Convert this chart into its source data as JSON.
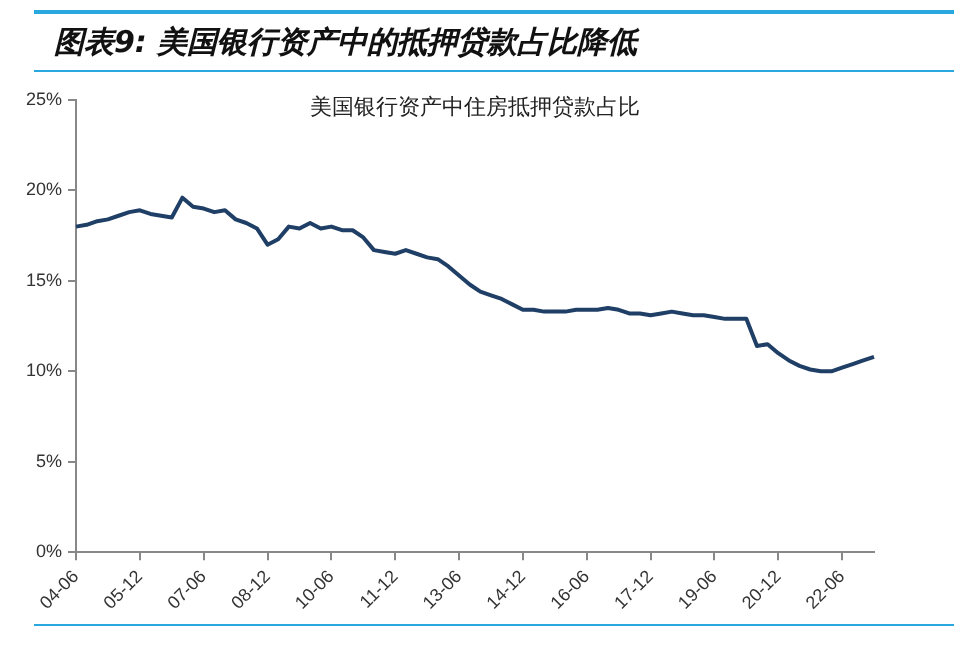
{
  "chart_data": {
    "type": "line",
    "title": "图表9: 美国银行资产中的抵押贷款占比降低",
    "subtitle": "美国银行资产中住房抵押贷款占比",
    "categories": [
      "04-06",
      null,
      null,
      null,
      null,
      null,
      "05-12",
      null,
      null,
      null,
      null,
      null,
      "07-06",
      null,
      null,
      null,
      null,
      null,
      "08-12",
      null,
      null,
      null,
      null,
      null,
      "10-06",
      null,
      null,
      null,
      null,
      null,
      "11-12",
      null,
      null,
      null,
      null,
      null,
      "13-06",
      null,
      null,
      null,
      null,
      null,
      "14-12",
      null,
      null,
      null,
      null,
      null,
      "16-06",
      null,
      null,
      null,
      null,
      null,
      "17-12",
      null,
      null,
      null,
      null,
      null,
      "19-06",
      null,
      null,
      null,
      null,
      null,
      "20-12",
      null,
      null,
      null,
      null,
      null,
      "22-06",
      null,
      null,
      null
    ],
    "series": [
      {
        "color": "#1f3f66",
        "values": [
          18.0,
          18.1,
          18.3,
          18.4,
          18.6,
          18.8,
          18.9,
          18.7,
          18.6,
          18.5,
          19.6,
          19.1,
          19.0,
          18.8,
          18.9,
          18.4,
          18.2,
          17.9,
          17.0,
          17.3,
          18.0,
          17.9,
          18.2,
          17.9,
          18.0,
          17.8,
          17.8,
          17.4,
          16.7,
          16.6,
          16.5,
          16.7,
          16.5,
          16.3,
          16.2,
          15.8,
          15.3,
          14.8,
          14.4,
          14.2,
          14.0,
          13.7,
          13.4,
          13.4,
          13.3,
          13.3,
          13.3,
          13.4,
          13.4,
          13.4,
          13.5,
          13.4,
          13.2,
          13.2,
          13.1,
          13.2,
          13.3,
          13.2,
          13.1,
          13.1,
          13.0,
          12.9,
          12.9,
          12.9,
          11.4,
          11.5,
          11.0,
          10.6,
          10.3,
          10.1,
          10.0,
          10.0,
          10.2,
          10.4,
          10.6,
          10.8
        ]
      }
    ],
    "ylim": [
      0,
      25
    ],
    "yticks": [
      {
        "value": 0,
        "label": "0%"
      },
      {
        "value": 5,
        "label": "5%"
      },
      {
        "value": 10,
        "label": "10%"
      },
      {
        "value": 15,
        "label": "15%"
      },
      {
        "value": 20,
        "label": "20%"
      },
      {
        "value": 25,
        "label": "25%"
      }
    ],
    "grid": false,
    "legend": false,
    "marker": "none",
    "line_style": "solid"
  }
}
